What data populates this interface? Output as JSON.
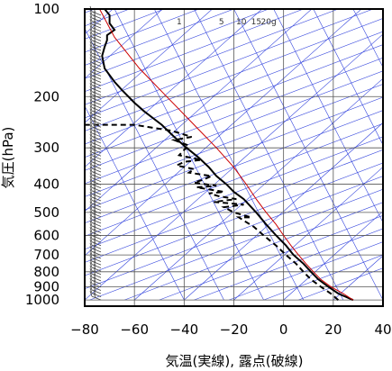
{
  "chart_data": {
    "type": "line",
    "title": "",
    "xlabel": "気温(実線), 露点(破線)",
    "ylabel": "気圧(hPa)",
    "xlim": [
      -80,
      40
    ],
    "ylim": [
      1050,
      100
    ],
    "y_scale": "log",
    "x_ticks": [
      "−80",
      "−60",
      "−40",
      "−20",
      "0",
      "20",
      "40"
    ],
    "x_tick_values": [
      -80,
      -60,
      -40,
      -20,
      0,
      20,
      40
    ],
    "y_ticks": [
      "100",
      "200",
      "300",
      "400",
      "500",
      "600",
      "700",
      "800",
      "900",
      "1000"
    ],
    "y_tick_values": [
      100,
      200,
      300,
      400,
      500,
      600,
      700,
      800,
      900,
      1000
    ],
    "mixing_ratio_labels": [
      "1",
      "5",
      "10",
      "15",
      "20g"
    ],
    "mixing_ratio_values": [
      1,
      5,
      10,
      15,
      20
    ],
    "colors": {
      "temperature": "#000000",
      "dewpoint": "#000000",
      "parcel": "#cc0000",
      "guide_lines": "#3344dd",
      "grid": "#555555"
    },
    "series": [
      {
        "name": "",
        "style": "solid",
        "points": [
          [
            28,
            1000
          ],
          [
            22,
            950
          ],
          [
            18,
            900
          ],
          [
            14,
            850
          ],
          [
            11,
            800
          ],
          [
            8,
            750
          ],
          [
            4,
            700
          ],
          [
            1,
            650
          ],
          [
            -3,
            600
          ],
          [
            -7,
            550
          ],
          [
            -11,
            500
          ],
          [
            -16,
            450
          ],
          [
            -20,
            425
          ],
          [
            -23,
            400
          ],
          [
            -27,
            375
          ],
          [
            -30,
            350
          ],
          [
            -34,
            325
          ],
          [
            -39,
            300
          ],
          [
            -44,
            275
          ],
          [
            -49,
            250
          ],
          [
            -56,
            225
          ],
          [
            -60,
            210
          ],
          [
            -65,
            190
          ],
          [
            -68,
            178
          ],
          [
            -72,
            160
          ],
          [
            -73,
            145
          ],
          [
            -72,
            135
          ],
          [
            -71,
            128
          ],
          [
            -71,
            123
          ],
          [
            -68,
            118
          ],
          [
            -70,
            112
          ],
          [
            -70,
            105
          ],
          [
            -72,
            100
          ]
        ]
      },
      {
        "name": "",
        "style": "dashed",
        "points": [
          [
            22,
            1000
          ],
          [
            19,
            950
          ],
          [
            15,
            900
          ],
          [
            11,
            850
          ],
          [
            8,
            800
          ],
          [
            5,
            750
          ],
          [
            1,
            700
          ],
          [
            -3,
            650
          ],
          [
            -8,
            600
          ],
          [
            -12,
            560
          ],
          [
            -15,
            540
          ],
          [
            -18,
            520
          ],
          [
            -13,
            520
          ],
          [
            -20,
            500
          ],
          [
            -24,
            480
          ],
          [
            -16,
            470
          ],
          [
            -28,
            460
          ],
          [
            -19,
            450
          ],
          [
            -26,
            440
          ],
          [
            -30,
            430
          ],
          [
            -24,
            425
          ],
          [
            -35,
            410
          ],
          [
            -27,
            405
          ],
          [
            -36,
            395
          ],
          [
            -32,
            385
          ],
          [
            -29,
            375
          ],
          [
            -38,
            365
          ],
          [
            -36,
            355
          ],
          [
            -43,
            345
          ],
          [
            -40,
            335
          ],
          [
            -33,
            330
          ],
          [
            -42,
            318
          ],
          [
            -40,
            305
          ],
          [
            -38,
            295
          ],
          [
            -44,
            282
          ],
          [
            -37,
            275
          ],
          [
            -45,
            262
          ],
          [
            -60,
            250
          ],
          [
            -80,
            250
          ]
        ]
      },
      {
        "name": "",
        "style": "solid",
        "points": [
          [
            28,
            1000
          ],
          [
            24,
            950
          ],
          [
            19,
            900
          ],
          [
            15,
            850
          ],
          [
            12,
            800
          ],
          [
            9,
            750
          ],
          [
            6,
            700
          ],
          [
            3,
            650
          ],
          [
            0,
            600
          ],
          [
            -3,
            550
          ],
          [
            -7,
            500
          ],
          [
            -11,
            450
          ],
          [
            -15,
            400
          ],
          [
            -20,
            350
          ],
          [
            -27,
            300
          ],
          [
            -36,
            250
          ],
          [
            -47,
            200
          ],
          [
            -58,
            160
          ],
          [
            -68,
            125
          ],
          [
            -74,
            100
          ]
        ]
      }
    ]
  },
  "axes": {
    "x_label": "気温(実線), 露点(破線)",
    "y_label": "気圧(hPa)"
  }
}
